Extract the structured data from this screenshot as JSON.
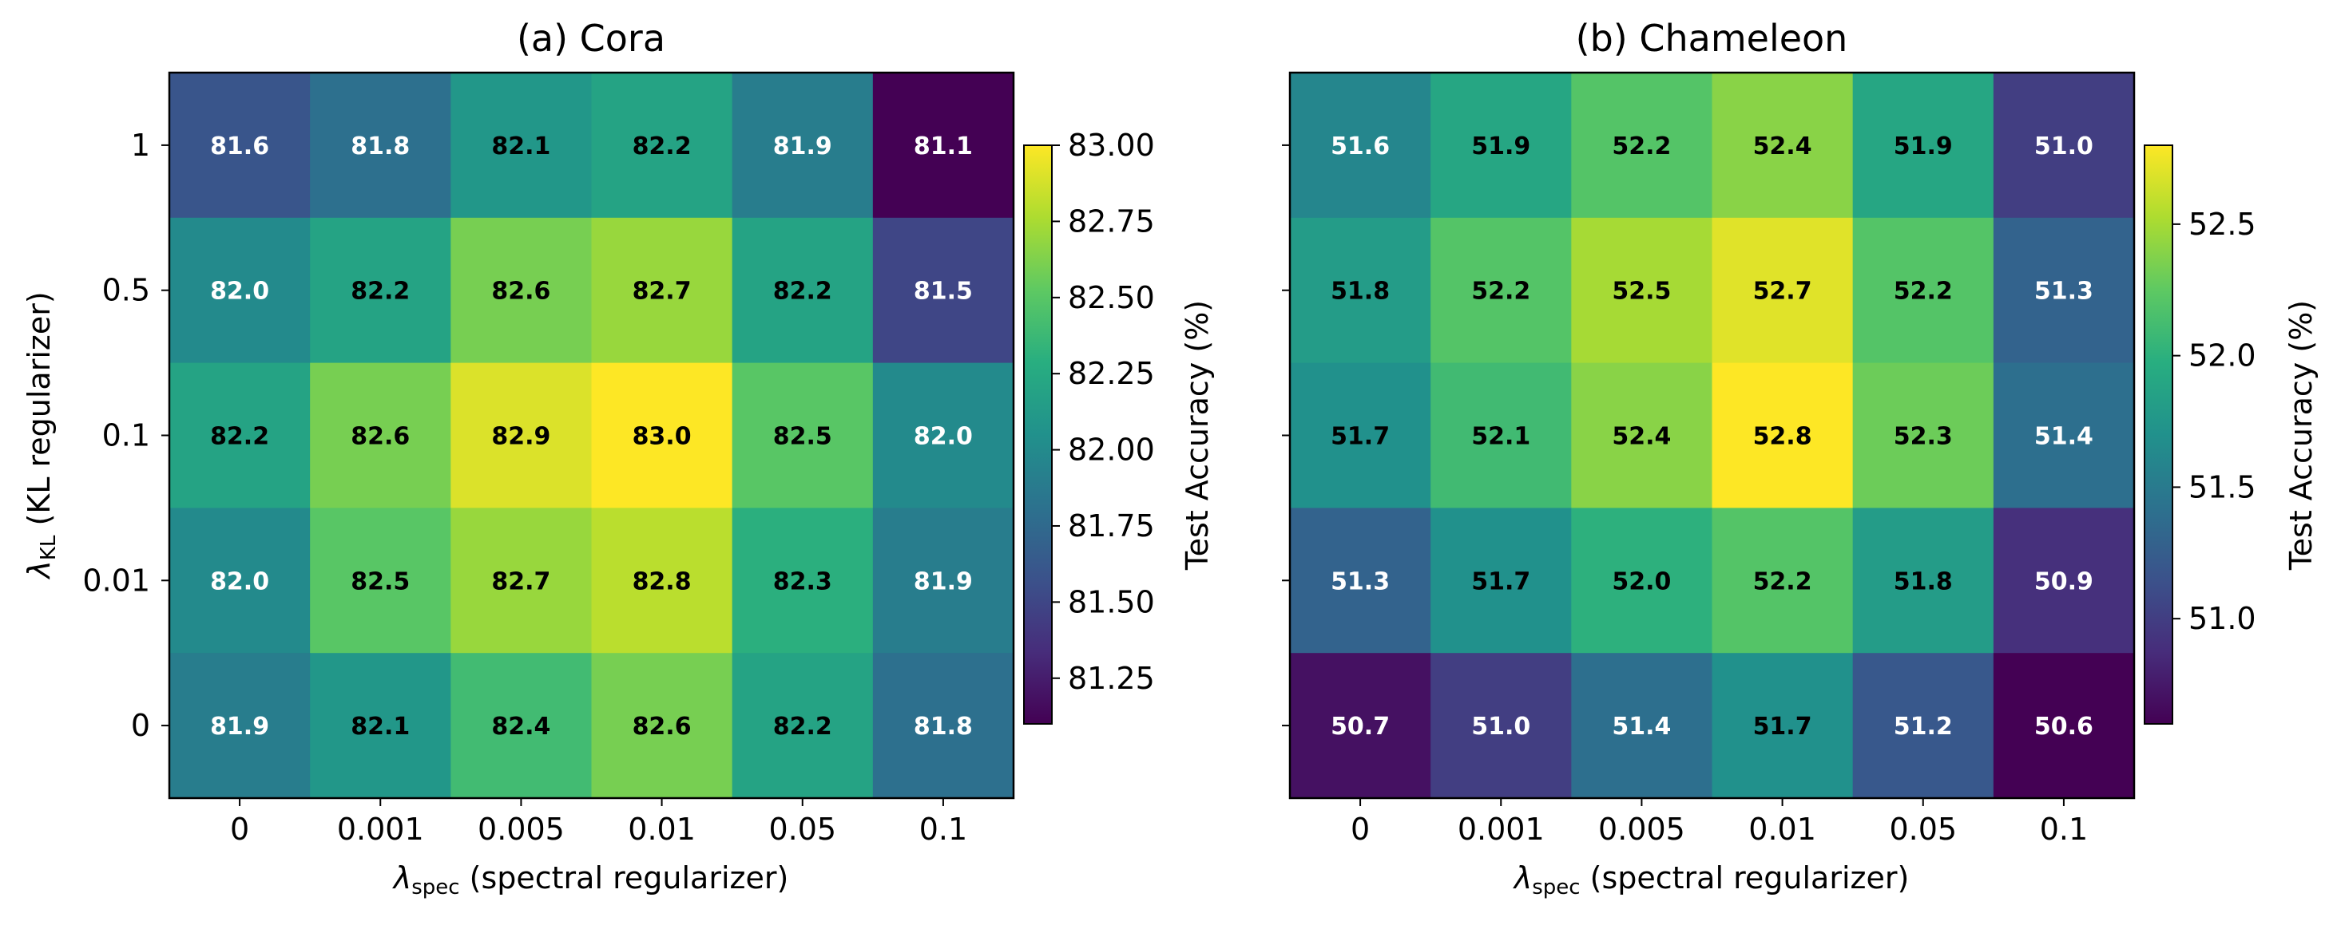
{
  "chart_data": [
    {
      "type": "heatmap",
      "title": "(a) Cora",
      "xlabel": {
        "symbol": "λ",
        "sub": "spec",
        "text": " (spectral regularizer)"
      },
      "ylabel": {
        "symbol": "λ",
        "sub": "KL",
        "text": " (KL regularizer)"
      },
      "x_categories": [
        "0",
        "0.001",
        "0.005",
        "0.01",
        "0.05",
        "0.1"
      ],
      "y_categories": [
        "1",
        "0.5",
        "0.1",
        "0.01",
        "0"
      ],
      "values": [
        [
          81.6,
          81.8,
          82.1,
          82.2,
          81.9,
          81.1
        ],
        [
          82.0,
          82.2,
          82.6,
          82.7,
          82.2,
          81.5
        ],
        [
          82.2,
          82.6,
          82.9,
          83.0,
          82.5,
          82.0
        ],
        [
          82.0,
          82.5,
          82.7,
          82.8,
          82.3,
          81.9
        ],
        [
          81.9,
          82.1,
          82.4,
          82.6,
          82.2,
          81.8
        ]
      ],
      "colorbar": {
        "label": "Test Accuracy (%)",
        "vmin": 81.1,
        "vmax": 83.0,
        "ticks": [
          "81.25",
          "81.50",
          "81.75",
          "82.00",
          "82.25",
          "82.50",
          "82.75",
          "83.00"
        ]
      }
    },
    {
      "type": "heatmap",
      "title": "(b) Chameleon",
      "xlabel": {
        "symbol": "λ",
        "sub": "spec",
        "text": " (spectral regularizer)"
      },
      "ylabel": null,
      "x_categories": [
        "0",
        "0.001",
        "0.005",
        "0.01",
        "0.05",
        "0.1"
      ],
      "y_categories": [
        "1",
        "0.5",
        "0.1",
        "0.01",
        "0"
      ],
      "values": [
        [
          51.6,
          51.9,
          52.2,
          52.4,
          51.9,
          51.0
        ],
        [
          51.8,
          52.2,
          52.5,
          52.7,
          52.2,
          51.3
        ],
        [
          51.7,
          52.1,
          52.4,
          52.8,
          52.3,
          51.4
        ],
        [
          51.3,
          51.7,
          52.0,
          52.2,
          51.8,
          50.9
        ],
        [
          50.7,
          51.0,
          51.4,
          51.7,
          51.2,
          50.6
        ]
      ],
      "colorbar": {
        "label": "Test Accuracy (%)",
        "vmin": 50.6,
        "vmax": 52.8,
        "ticks": [
          "51.0",
          "51.5",
          "52.0",
          "52.5"
        ]
      }
    }
  ]
}
